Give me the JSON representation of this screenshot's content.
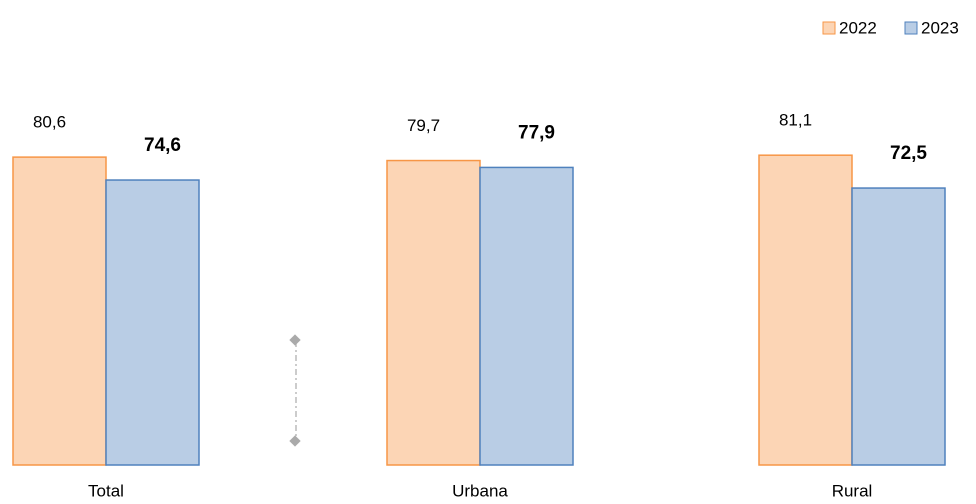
{
  "chart_data": {
    "type": "bar",
    "categories": [
      "Total",
      "Urbana",
      "Rural"
    ],
    "series": [
      {
        "name": "2022",
        "color": "#fcd5b5",
        "edgecolor": "#f79646",
        "values": [
          80.6,
          79.7,
          81.1
        ],
        "value_labels": [
          "80,6",
          "79,7",
          "81,1"
        ]
      },
      {
        "name": "2023",
        "color": "#b9cde5",
        "edgecolor": "#4f81bd",
        "values": [
          74.6,
          77.9,
          72.5
        ],
        "value_labels": [
          "74,6",
          "77,9",
          "72,5"
        ]
      }
    ],
    "legend": "upper right"
  }
}
